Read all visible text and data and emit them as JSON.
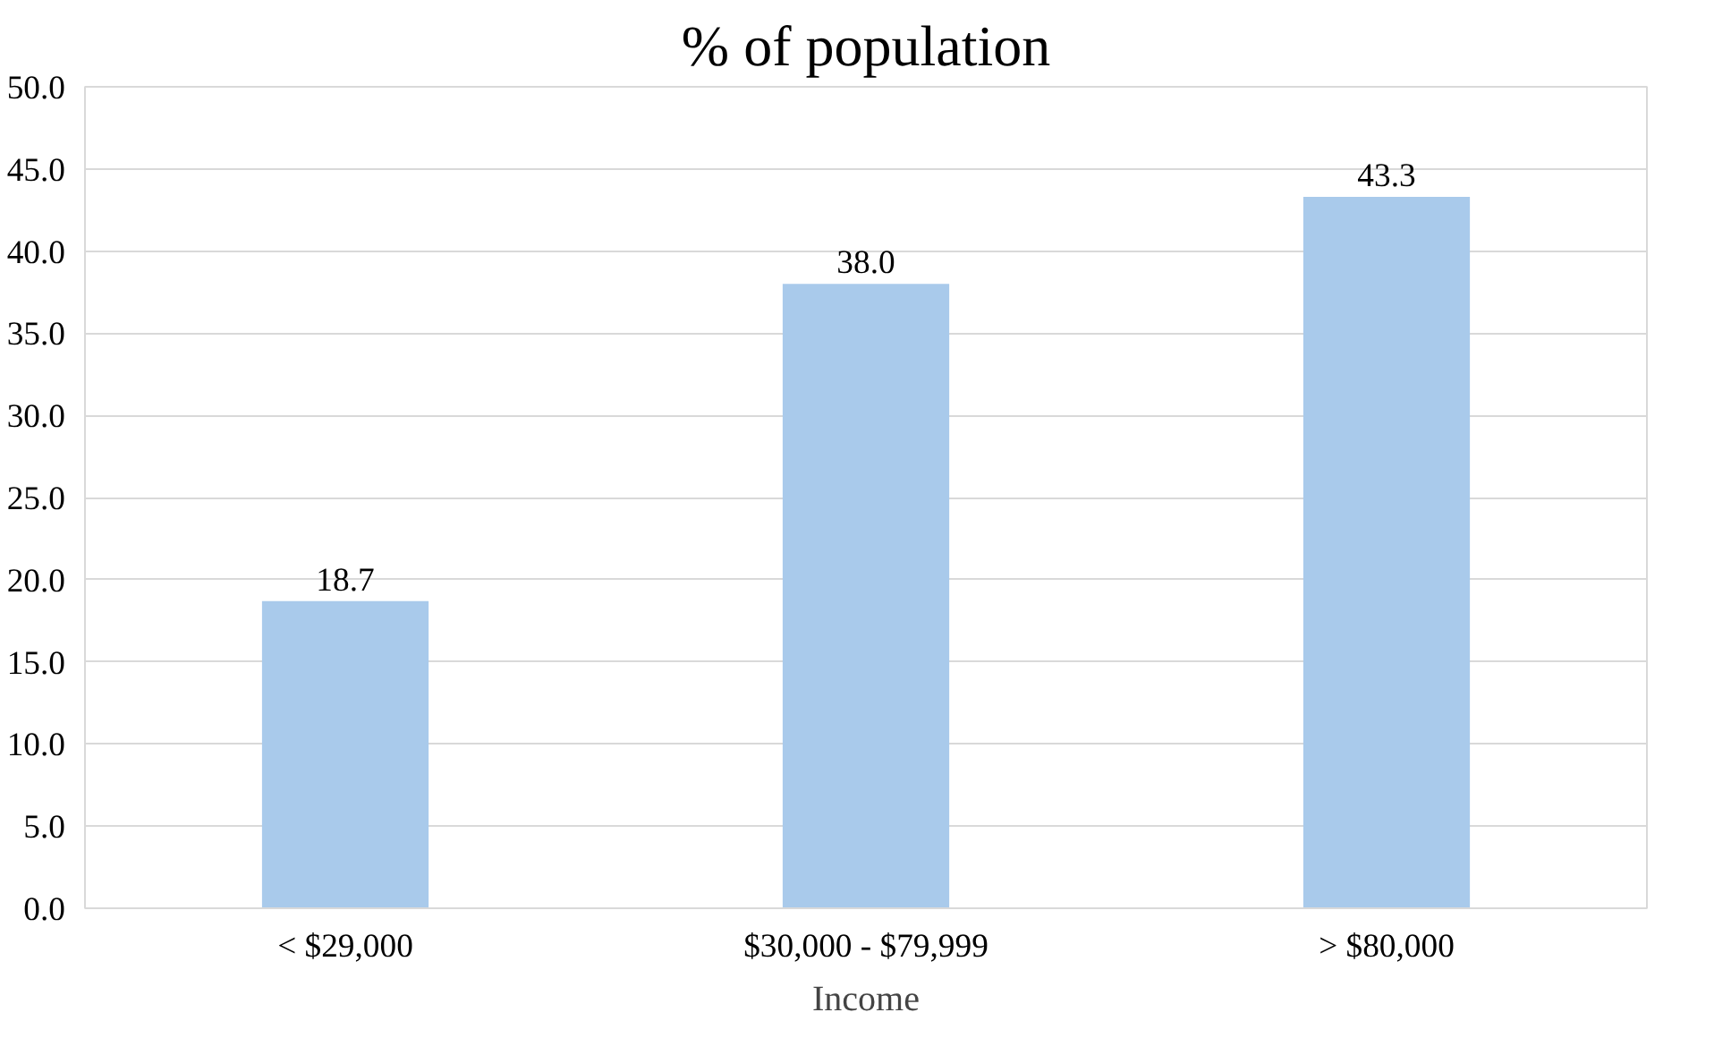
{
  "chart_data": {
    "type": "bar",
    "title": "% of population",
    "xlabel": "Income",
    "categories": [
      "< $29,000",
      "$30,000 - $79,999",
      "> $80,000"
    ],
    "values": [
      18.7,
      38.0,
      43.3
    ],
    "color": "#a9caeb",
    "value_labels": [
      "18.7",
      "38.0",
      "43.3"
    ],
    "ylim": [
      0,
      50
    ],
    "yticks": [
      {
        "value": 0,
        "label": "0.0"
      },
      {
        "value": 5,
        "label": "5.0"
      },
      {
        "value": 10,
        "label": "10.0"
      },
      {
        "value": 15,
        "label": "15.0"
      },
      {
        "value": 20,
        "label": "20.0"
      },
      {
        "value": 25,
        "label": "25.0"
      },
      {
        "value": 30,
        "label": "30.0"
      },
      {
        "value": 35,
        "label": "35.0"
      },
      {
        "value": 40,
        "label": "40.0"
      },
      {
        "value": 45,
        "label": "45.0"
      },
      {
        "value": 50,
        "label": "50.0"
      }
    ],
    "grid": "y"
  }
}
